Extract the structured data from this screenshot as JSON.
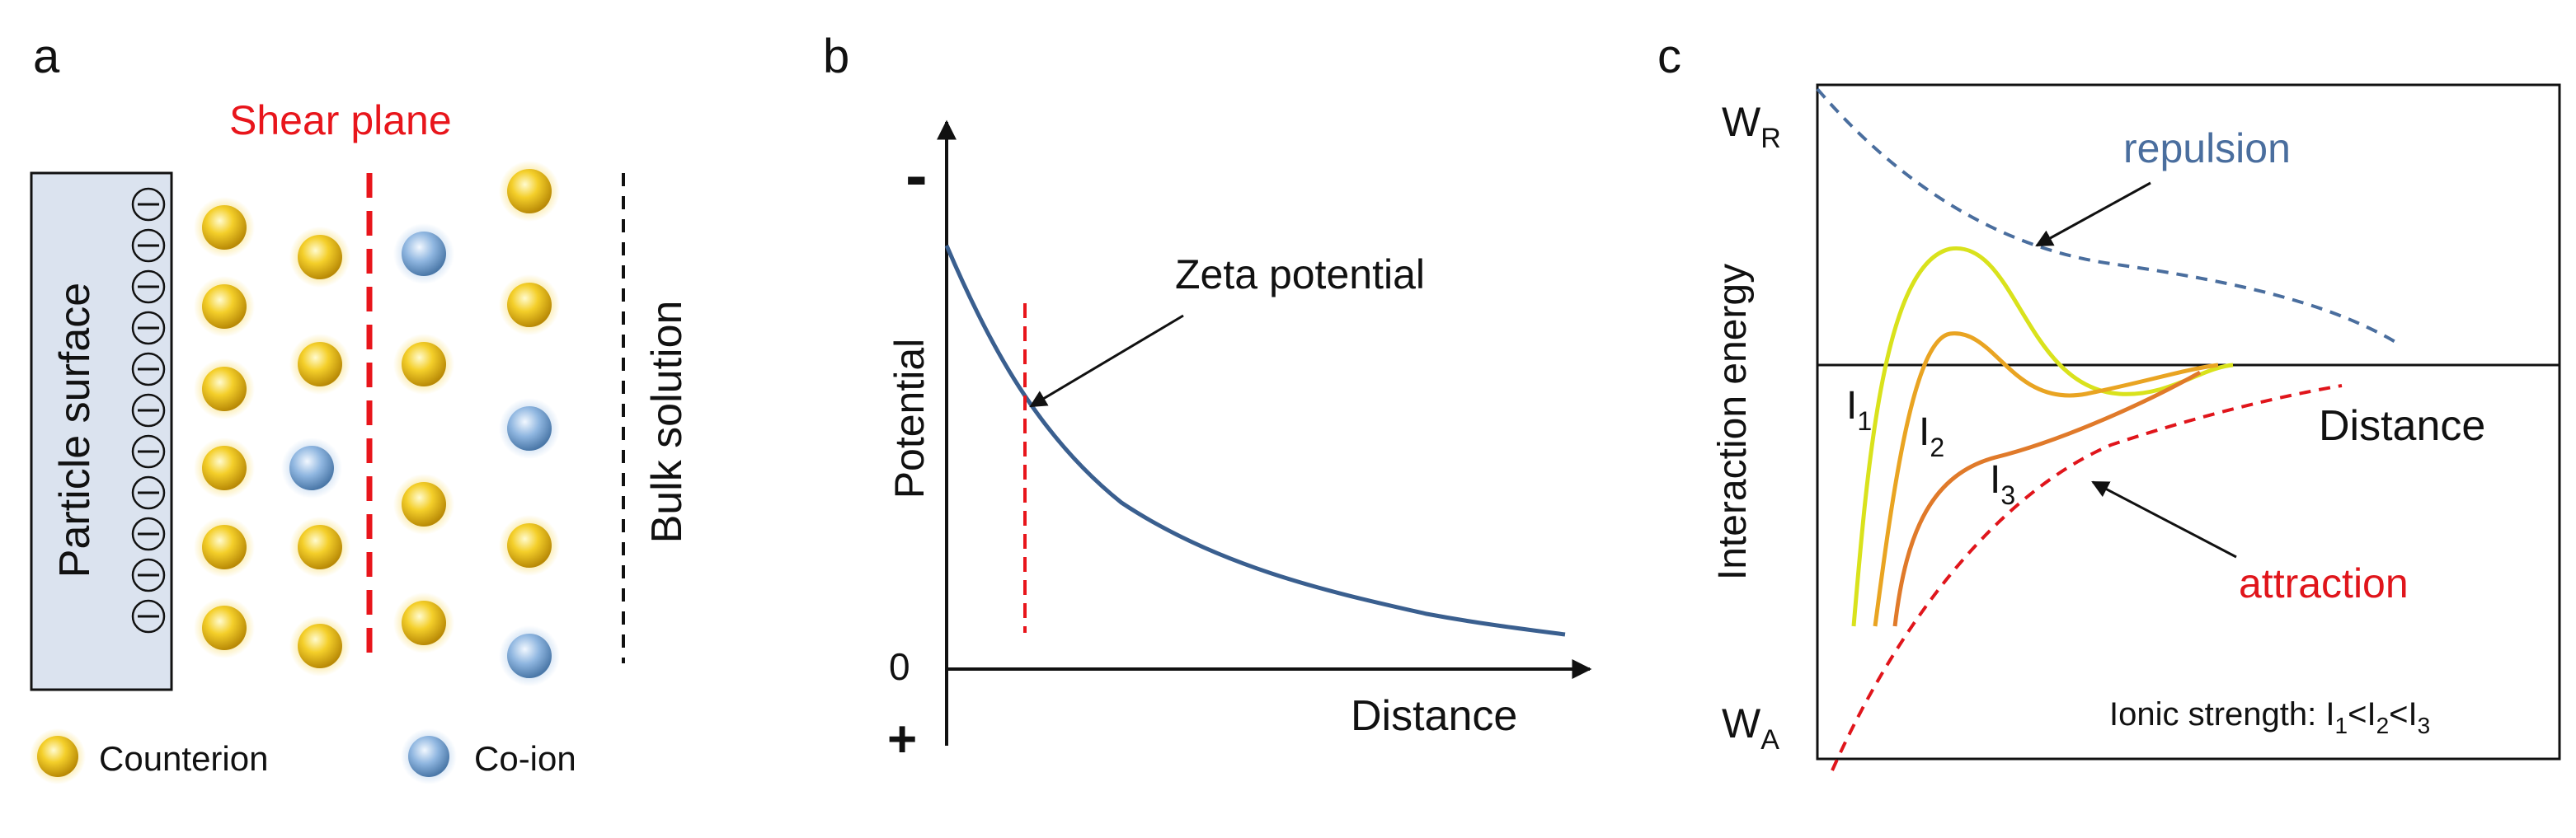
{
  "panel_a": {
    "label": "a",
    "shear_plane": "Shear plane",
    "particle_surface": "Particle surface",
    "bulk_solution": "Bulk solution",
    "legend": {
      "counterion": "Counterion",
      "coion": "Co-ion"
    },
    "surface_charge_symbol": "−",
    "colors": {
      "counterion": "#f2c21b",
      "coion": "#8fb6e0",
      "surface": "#dbe3ef",
      "shear": "#e8151b"
    }
  },
  "panel_b": {
    "label": "b",
    "ylabel": "Potential",
    "xlabel": "Distance",
    "y_top": "-",
    "y_zero": "0",
    "y_bottom": "+",
    "annotation": "Zeta potential",
    "colors": {
      "curve": "#3a5f8f",
      "marker": "#e8151b"
    }
  },
  "panel_c": {
    "label": "c",
    "ylabel": "Interaction energy",
    "xlabel": "Distance",
    "wr": {
      "main": "W",
      "sub": "R"
    },
    "wa": {
      "main": "W",
      "sub": "A"
    },
    "repulsion": "repulsion",
    "attraction": "attraction",
    "curves": [
      {
        "main": "I",
        "sub": "1",
        "color": "#d9e21c"
      },
      {
        "main": "I",
        "sub": "2",
        "color": "#e9a422"
      },
      {
        "main": "I",
        "sub": "3",
        "color": "#e07a2a"
      }
    ],
    "ionic": {
      "prefix": "Ionic strength: ",
      "i": "I",
      "s1": "1",
      "lt": "<",
      "s2": "2",
      "s3": "3"
    },
    "colors": {
      "repulsion": "#4a6e9e",
      "attraction": "#e0151b"
    }
  }
}
